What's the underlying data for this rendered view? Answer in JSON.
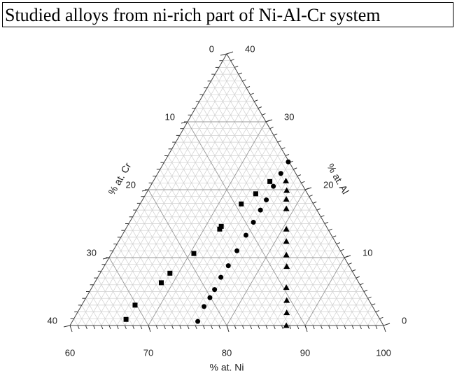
{
  "chart_data": {
    "type": "ternary",
    "title": "Studied alloys from ni-rich part of Ni-Al-Cr system",
    "ni_label": "% at. Ni",
    "al_label": "% at. Al",
    "cr_label": "% at. Cr",
    "ni_lim": [
      60,
      100
    ],
    "al_lim": [
      0,
      40
    ],
    "cr_lim": [
      0,
      40
    ],
    "ni_ticks": [
      60,
      70,
      80,
      90,
      100
    ],
    "al_ticks": [
      0,
      10,
      20,
      30,
      40
    ],
    "cr_ticks": [
      0,
      10,
      20,
      30,
      40
    ],
    "grid": true,
    "grid_step": 1,
    "series": [
      {
        "marker": "square",
        "color": "#000000",
        "ni": [
          74.9,
          74.0,
          72.9,
          72.0,
          72.0,
          70.5,
          68.9,
          68.5,
          66.8,
          66.7
        ],
        "al": [
          21.2,
          19.4,
          17.9,
          14.6,
          14.2,
          10.6,
          7.7,
          6.3,
          3.0,
          0.9
        ]
      },
      {
        "marker": "circle",
        "color": "#000000",
        "ni": [
          75.8,
          75.7,
          75.7,
          75.8,
          75.8,
          75.8,
          75.8,
          75.8,
          75.8,
          75.7,
          75.8,
          75.8,
          75.7,
          76.0
        ],
        "al": [
          24.1,
          22.4,
          20.5,
          18.5,
          17.0,
          15.2,
          13.3,
          11.0,
          8.8,
          7.1,
          5.3,
          4.1,
          2.8,
          0.6
        ]
      },
      {
        "marker": "triangle",
        "color": "#000000",
        "ni": [
          76.9,
          77.7,
          78.3,
          79.0,
          80.5,
          81.4,
          82.4,
          83.3,
          84.8,
          85.8,
          86.7,
          87.6
        ],
        "al": [
          21.3,
          19.9,
          18.6,
          17.2,
          14.2,
          12.4,
          10.4,
          8.7,
          5.6,
          3.7,
          1.9,
          0.0
        ]
      }
    ]
  }
}
